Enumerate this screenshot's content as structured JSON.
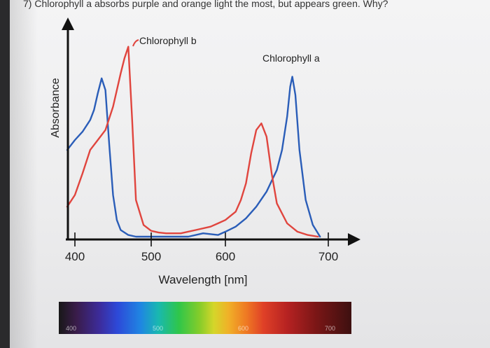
{
  "question": "7) Chlorophyll a absorbs purple and orange light the most, but appears green. Why?",
  "chart_data": {
    "type": "line",
    "xlabel": "Wavelength [nm]",
    "ylabel": "Absorbance",
    "x_ticks": [
      "400",
      "500",
      "600",
      "700"
    ],
    "xlim": [
      390,
      720
    ],
    "ylim": [
      0,
      1
    ],
    "series": [
      {
        "name": "Chlorophyll a",
        "color": "#2a5db8",
        "x": [
          390,
          400,
          410,
          420,
          425,
          430,
          435,
          440,
          445,
          450,
          455,
          460,
          470,
          480,
          500,
          550,
          570,
          590,
          600,
          610,
          620,
          630,
          640,
          650,
          655,
          660,
          663,
          665,
          668,
          672,
          678,
          685,
          692
        ],
        "y": [
          0.52,
          0.58,
          0.63,
          0.7,
          0.76,
          0.86,
          0.95,
          0.88,
          0.55,
          0.25,
          0.1,
          0.04,
          0.01,
          0.0,
          0.0,
          0.0,
          0.02,
          0.01,
          0.03,
          0.06,
          0.11,
          0.18,
          0.27,
          0.4,
          0.52,
          0.72,
          0.9,
          0.96,
          0.85,
          0.52,
          0.22,
          0.07,
          0.0
        ]
      },
      {
        "name": "Chlorophyll b",
        "color": "#e0453e",
        "x": [
          390,
          400,
          410,
          420,
          430,
          440,
          450,
          460,
          465,
          470,
          475,
          480,
          490,
          500,
          510,
          520,
          540,
          560,
          580,
          590,
          600,
          610,
          615,
          620,
          625,
          630,
          635,
          640,
          645,
          650,
          660,
          670,
          680,
          690
        ],
        "y": [
          0.18,
          0.25,
          0.38,
          0.52,
          0.58,
          0.64,
          0.78,
          0.98,
          1.07,
          1.14,
          0.7,
          0.22,
          0.07,
          0.035,
          0.025,
          0.02,
          0.02,
          0.04,
          0.06,
          0.08,
          0.1,
          0.15,
          0.22,
          0.32,
          0.5,
          0.64,
          0.68,
          0.6,
          0.38,
          0.2,
          0.08,
          0.03,
          0.01,
          0.0
        ]
      }
    ],
    "annotations": [
      {
        "text": "Chlorophyll b",
        "series": "Chlorophyll b"
      },
      {
        "text": "Chlorophyll a",
        "series": "Chlorophyll a"
      }
    ]
  },
  "spectrum_bar": {
    "labels": [
      "400",
      "500",
      "600",
      "700"
    ]
  }
}
